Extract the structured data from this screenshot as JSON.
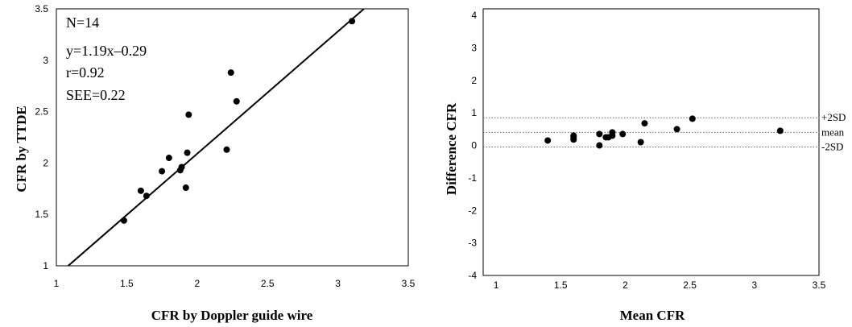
{
  "chart_data": [
    {
      "type": "scatter",
      "title": "",
      "xlabel": "CFR by Doppler guide wire",
      "ylabel": "CFR by TTDE",
      "xlim": [
        1,
        3.5
      ],
      "ylim": [
        1,
        3.5
      ],
      "x_ticks": [
        "1",
        "1.5",
        "2",
        "2.5",
        "3",
        "3.5"
      ],
      "y_ticks": [
        "1",
        "1.5",
        "2",
        "2.5",
        "3",
        "3.5"
      ],
      "annotations": [
        "N=14",
        "y=1.19x–0.29",
        "r=0.92",
        "SEE=0.22"
      ],
      "regression_line": {
        "slope": 1.19,
        "intercept": -0.29
      },
      "grid": false,
      "points": [
        {
          "x": 1.48,
          "y": 1.44
        },
        {
          "x": 1.6,
          "y": 1.73
        },
        {
          "x": 1.64,
          "y": 1.68
        },
        {
          "x": 1.75,
          "y": 1.92
        },
        {
          "x": 1.8,
          "y": 2.05
        },
        {
          "x": 1.88,
          "y": 1.93
        },
        {
          "x": 1.89,
          "y": 1.96
        },
        {
          "x": 1.92,
          "y": 1.76
        },
        {
          "x": 1.93,
          "y": 2.1
        },
        {
          "x": 1.94,
          "y": 2.47
        },
        {
          "x": 2.21,
          "y": 2.13
        },
        {
          "x": 2.24,
          "y": 2.88
        },
        {
          "x": 2.28,
          "y": 2.6
        },
        {
          "x": 3.1,
          "y": 3.38
        }
      ]
    },
    {
      "type": "scatter",
      "title": "",
      "xlabel": "Mean CFR",
      "ylabel": "Difference CFR",
      "xlim": [
        0.9,
        3.5
      ],
      "ylim": [
        -4,
        4.2
      ],
      "x_ticks": [
        "1",
        "1.5",
        "2",
        "2.5",
        "3",
        "3.5"
      ],
      "y_ticks": [
        "4",
        "3",
        "2",
        "1",
        "0",
        "-1",
        "-2",
        "-3",
        "-4"
      ],
      "grid": false,
      "reference_lines": [
        {
          "label": "+2SD",
          "y": 0.85
        },
        {
          "label": "mean",
          "y": 0.4
        },
        {
          "label": "-2SD",
          "y": -0.05
        }
      ],
      "points": [
        {
          "x": 1.4,
          "y": 0.15
        },
        {
          "x": 1.6,
          "y": 0.18
        },
        {
          "x": 1.6,
          "y": 0.25
        },
        {
          "x": 1.6,
          "y": 0.3
        },
        {
          "x": 1.8,
          "y": 0.0
        },
        {
          "x": 1.8,
          "y": 0.35
        },
        {
          "x": 1.85,
          "y": 0.25
        },
        {
          "x": 1.87,
          "y": 0.25
        },
        {
          "x": 1.9,
          "y": 0.3
        },
        {
          "x": 1.9,
          "y": 0.4
        },
        {
          "x": 1.98,
          "y": 0.35
        },
        {
          "x": 2.12,
          "y": 0.1
        },
        {
          "x": 2.15,
          "y": 0.68
        },
        {
          "x": 2.4,
          "y": 0.5
        },
        {
          "x": 2.52,
          "y": 0.82
        },
        {
          "x": 3.2,
          "y": 0.45
        }
      ]
    }
  ]
}
